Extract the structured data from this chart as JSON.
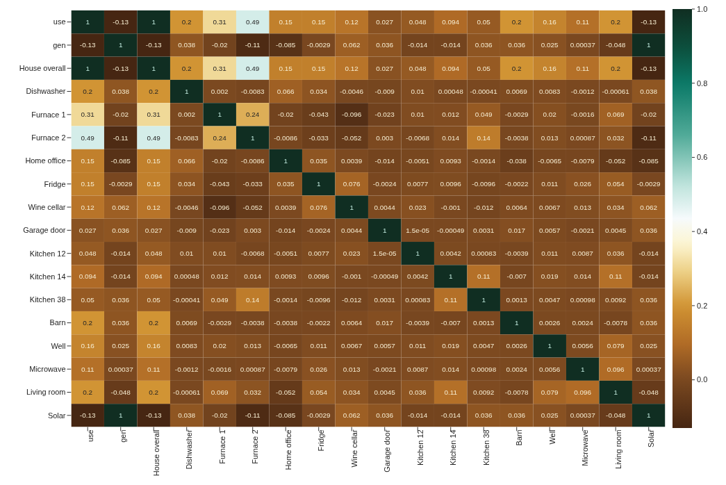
{
  "chart_data": {
    "type": "heatmap",
    "categories": [
      "use",
      "gen",
      "House overall",
      "Dishwasher",
      "Furnace 1",
      "Furnace 2",
      "Home office",
      "Fridge",
      "Wine cellar",
      "Garage door",
      "Kitchen 12",
      "Kitchen 14",
      "Kitchen 38",
      "Barn",
      "Well",
      "Microwave",
      "Living room",
      "Solar"
    ],
    "y_categories": [
      "use",
      "gen",
      "House overall",
      "Dishwasher",
      "Furnace 1",
      "Furnace 2",
      "Home office",
      "Fridge",
      "Wine cellar",
      "Garage door",
      "Kitchen 12",
      "Kitchen 14",
      "Kitchen 38",
      "Barn",
      "Well",
      "Microwave",
      "Living room",
      "Solar"
    ],
    "cells": [
      [
        1,
        -0.13,
        1,
        0.2,
        0.31,
        0.49,
        0.15,
        0.15,
        0.12,
        0.027,
        0.048,
        0.094,
        0.05,
        0.2,
        0.16,
        0.11,
        0.2,
        -0.13
      ],
      [
        -0.13,
        1,
        -0.13,
        0.038,
        -0.02,
        -0.11,
        -0.085,
        -0.0029,
        0.062,
        0.036,
        -0.014,
        -0.014,
        0.036,
        0.036,
        0.025,
        0.00037,
        -0.048,
        1
      ],
      [
        1,
        -0.13,
        1,
        0.2,
        0.31,
        0.49,
        0.15,
        0.15,
        0.12,
        0.027,
        0.048,
        0.094,
        0.05,
        0.2,
        0.16,
        0.11,
        0.2,
        -0.13
      ],
      [
        0.2,
        0.038,
        0.2,
        1,
        0.002,
        -0.0083,
        0.066,
        0.034,
        -0.0046,
        -0.009,
        0.01,
        0.00048,
        -0.00041,
        0.0069,
        0.0083,
        -0.0012,
        -0.00061,
        0.038
      ],
      [
        0.31,
        -0.02,
        0.31,
        0.002,
        1,
        0.24,
        -0.02,
        -0.043,
        -0.096,
        -0.023,
        0.01,
        0.012,
        0.049,
        -0.0029,
        0.02,
        -0.0016,
        0.069,
        -0.02
      ],
      [
        0.49,
        -0.11,
        0.49,
        -0.0083,
        0.24,
        1,
        -0.0086,
        -0.033,
        -0.052,
        0.003,
        -0.0068,
        0.014,
        0.14,
        -0.0038,
        0.013,
        0.00087,
        0.032,
        -0.11
      ],
      [
        0.15,
        -0.085,
        0.15,
        0.066,
        -0.02,
        -0.0086,
        1,
        0.035,
        0.0039,
        -0.014,
        -0.0051,
        0.0093,
        -0.0014,
        -0.038,
        -0.0065,
        -0.0079,
        -0.052,
        -0.085
      ],
      [
        0.15,
        -0.0029,
        0.15,
        0.034,
        -0.043,
        -0.033,
        0.035,
        1,
        0.076,
        -0.0024,
        0.0077,
        0.0096,
        -0.0096,
        -0.0022,
        0.011,
        0.026,
        0.054,
        -0.0029
      ],
      [
        0.12,
        0.062,
        0.12,
        -0.0046,
        -0.096,
        -0.052,
        0.0039,
        0.076,
        1,
        0.0044,
        0.023,
        -0.001,
        -0.012,
        0.0064,
        0.0067,
        0.013,
        0.034,
        0.062
      ],
      [
        0.027,
        0.036,
        0.027,
        -0.009,
        -0.023,
        0.003,
        -0.014,
        -0.0024,
        0.0044,
        1,
        1.5e-05,
        -0.00049,
        0.0031,
        0.017,
        0.0057,
        -0.0021,
        0.0045,
        0.036
      ],
      [
        0.048,
        -0.014,
        0.048,
        0.01,
        0.01,
        -0.0068,
        -0.0051,
        0.0077,
        0.023,
        1.5e-05,
        1,
        0.0042,
        0.00083,
        -0.0039,
        0.011,
        0.0087,
        0.036,
        -0.014
      ],
      [
        0.094,
        -0.014,
        0.094,
        0.00048,
        0.012,
        0.014,
        0.0093,
        0.0096,
        -0.001,
        -0.00049,
        0.0042,
        1,
        0.11,
        -0.007,
        0.019,
        0.014,
        0.11,
        -0.014
      ],
      [
        0.05,
        0.036,
        0.05,
        -0.00041,
        0.049,
        0.14,
        -0.0014,
        -0.0096,
        -0.012,
        0.0031,
        0.00083,
        0.11,
        1,
        0.0013,
        0.0047,
        0.00098,
        0.0092,
        0.036
      ],
      [
        0.2,
        0.036,
        0.2,
        0.0069,
        -0.0029,
        -0.0038,
        -0.0038,
        -0.0022,
        0.0064,
        0.017,
        -0.0039,
        -0.007,
        0.0013,
        1,
        0.0026,
        0.0024,
        -0.0078,
        0.036
      ],
      [
        0.16,
        0.025,
        0.16,
        0.0083,
        0.02,
        0.013,
        -0.0065,
        0.011,
        0.0067,
        0.0057,
        0.011,
        0.019,
        0.0047,
        0.0026,
        1,
        0.0056,
        0.079,
        0.025
      ],
      [
        0.11,
        0.00037,
        0.11,
        -0.0012,
        -0.0016,
        0.00087,
        -0.0079,
        0.026,
        0.013,
        -0.0021,
        0.0087,
        0.014,
        0.00098,
        0.0024,
        0.0056,
        1,
        0.096,
        0.00037
      ],
      [
        0.2,
        -0.048,
        0.2,
        -0.00061,
        0.069,
        0.032,
        -0.052,
        0.054,
        0.034,
        0.0045,
        0.036,
        0.11,
        0.0092,
        -0.0078,
        0.079,
        0.096,
        1,
        -0.048
      ],
      [
        -0.13,
        1,
        -0.13,
        0.038,
        -0.02,
        -0.11,
        -0.085,
        -0.0029,
        0.062,
        0.036,
        -0.014,
        -0.014,
        0.036,
        0.036,
        0.025,
        0.00037,
        -0.048,
        1
      ]
    ],
    "data_labels": true,
    "clim": [
      -0.13,
      1
    ],
    "cticks": [
      {
        "value": 0,
        "label": "0.0"
      },
      {
        "value": 0.2,
        "label": "0.2"
      },
      {
        "value": 0.4,
        "label": "0.4"
      },
      {
        "value": 0.6,
        "label": "0.6"
      },
      {
        "value": 0.8,
        "label": "0.8"
      },
      {
        "value": 1,
        "label": "1.0"
      }
    ]
  }
}
